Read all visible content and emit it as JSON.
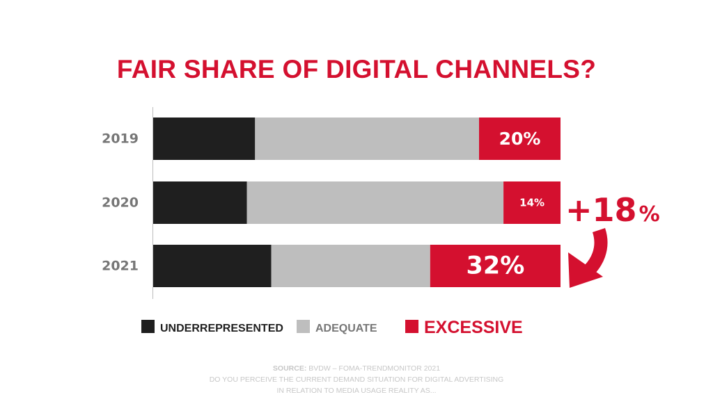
{
  "colors": {
    "underrepresented": "#1f1f1f",
    "adequate": "#bebebe",
    "excessive": "#d4102f",
    "axis_text": "#767676",
    "source_text": "#c7c7c7"
  },
  "chart_data": {
    "type": "bar",
    "orientation": "horizontal",
    "stacked": true,
    "title": "FAIR SHARE OF DIGITAL CHANNELS?",
    "categories": [
      "2019",
      "2020",
      "2021"
    ],
    "series": [
      {
        "name": "UNDERREPRESENTED",
        "values": [
          25,
          23,
          29
        ]
      },
      {
        "name": "ADEQUATE",
        "values": [
          55,
          63,
          39
        ]
      },
      {
        "name": "EXCESSIVE",
        "values": [
          20,
          14,
          32
        ]
      }
    ],
    "data_labels": [
      "20%",
      "14%",
      "32%"
    ],
    "xlim": [
      0,
      100
    ],
    "grid": false,
    "legend_position": "bottom",
    "annotation": {
      "text": "+18",
      "unit": "%",
      "icon": "curved-arrow-down-icon"
    }
  },
  "source": {
    "label": "SOURCE:",
    "text": " BVDW – FOMA-TRENDMONITOR 2021",
    "line2": "DO YOU PERCEIVE THE CURRENT DEMAND SITUATION FOR DIGITAL ADVERTISING",
    "line3": "IN RELATION TO MEDIA USAGE REALITY AS..."
  }
}
